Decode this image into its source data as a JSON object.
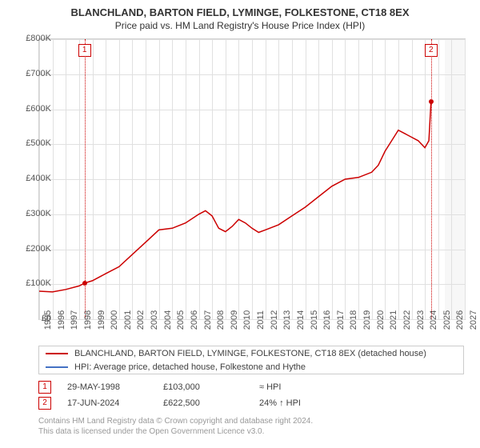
{
  "title": "BLANCHLAND, BARTON FIELD, LYMINGE, FOLKESTONE, CT18 8EX",
  "subtitle": "Price paid vs. HM Land Registry's House Price Index (HPI)",
  "chart": {
    "type": "line",
    "background_color": "#f7f7f7",
    "plot_background_color": "#ffffff",
    "grid_color": "#e0e0e0",
    "y": {
      "min": 0,
      "max": 800000,
      "ticks": [
        0,
        100000,
        200000,
        300000,
        400000,
        500000,
        600000,
        700000,
        800000
      ],
      "tick_labels": [
        "£0",
        "£100K",
        "£200K",
        "£300K",
        "£400K",
        "£500K",
        "£600K",
        "£700K",
        "£800K"
      ]
    },
    "x": {
      "min": 1995,
      "max": 2027,
      "ticks": [
        1995,
        1996,
        1997,
        1998,
        1999,
        2000,
        2001,
        2002,
        2003,
        2004,
        2005,
        2006,
        2007,
        2008,
        2009,
        2010,
        2011,
        2012,
        2013,
        2014,
        2015,
        2016,
        2017,
        2018,
        2019,
        2020,
        2021,
        2022,
        2023,
        2024,
        2025,
        2026,
        2027
      ],
      "plot_start": 1995,
      "plot_end": 2025.5
    },
    "series": {
      "name": "BLANCHLAND, BARTON FIELD, LYMINGE, FOLKESTONE, CT18 8EX (detached house)",
      "color": "#cc0000",
      "line_width": 1.5,
      "points": [
        [
          1995,
          80000
        ],
        [
          1996,
          78000
        ],
        [
          1997,
          85000
        ],
        [
          1998,
          95000
        ],
        [
          1998.41,
          103000
        ],
        [
          1999,
          110000
        ],
        [
          2000,
          130000
        ],
        [
          2001,
          150000
        ],
        [
          2002,
          185000
        ],
        [
          2003,
          220000
        ],
        [
          2004,
          255000
        ],
        [
          2005,
          260000
        ],
        [
          2006,
          275000
        ],
        [
          2007,
          300000
        ],
        [
          2007.5,
          310000
        ],
        [
          2008,
          295000
        ],
        [
          2008.5,
          260000
        ],
        [
          2009,
          250000
        ],
        [
          2009.5,
          265000
        ],
        [
          2010,
          285000
        ],
        [
          2010.5,
          275000
        ],
        [
          2011,
          260000
        ],
        [
          2011.5,
          248000
        ],
        [
          2012,
          255000
        ],
        [
          2013,
          270000
        ],
        [
          2014,
          295000
        ],
        [
          2015,
          320000
        ],
        [
          2016,
          350000
        ],
        [
          2017,
          380000
        ],
        [
          2018,
          400000
        ],
        [
          2019,
          405000
        ],
        [
          2020,
          420000
        ],
        [
          2020.5,
          440000
        ],
        [
          2021,
          480000
        ],
        [
          2021.5,
          510000
        ],
        [
          2022,
          540000
        ],
        [
          2022.5,
          530000
        ],
        [
          2023,
          520000
        ],
        [
          2023.5,
          510000
        ],
        [
          2024,
          490000
        ],
        [
          2024.3,
          510000
        ],
        [
          2024.46,
          622500
        ]
      ]
    },
    "hpi_series": {
      "name": "HPI: Average price, detached house, Folkestone and Hythe",
      "color": "#4472c4"
    },
    "markers": [
      {
        "label": "1",
        "year": 1998.41,
        "price": 103000
      },
      {
        "label": "2",
        "year": 2024.46,
        "price": 622500
      }
    ]
  },
  "legend": {
    "line1": "BLANCHLAND, BARTON FIELD, LYMINGE, FOLKESTONE, CT18 8EX (detached house)",
    "line2": "HPI: Average price, detached house, Folkestone and Hythe"
  },
  "data_rows": [
    {
      "marker": "1",
      "date": "29-MAY-1998",
      "price": "£103,000",
      "delta": "≈ HPI"
    },
    {
      "marker": "2",
      "date": "17-JUN-2024",
      "price": "£622,500",
      "delta": "24% ↑ HPI"
    }
  ],
  "footer": {
    "line1": "Contains HM Land Registry data © Crown copyright and database right 2024.",
    "line2": "This data is licensed under the Open Government Licence v3.0."
  }
}
